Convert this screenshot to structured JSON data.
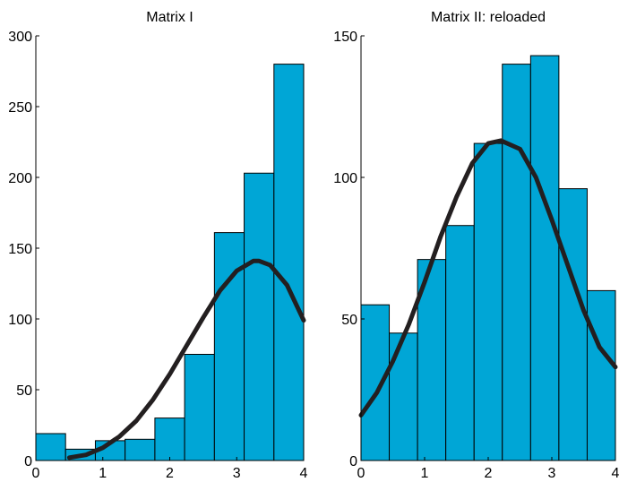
{
  "chart_data": [
    {
      "type": "bar",
      "title": "Matrix I",
      "xlabel": "",
      "ylabel": "",
      "xlim": [
        0,
        4
      ],
      "ylim": [
        0,
        300
      ],
      "xticks": [
        "0",
        "1",
        "2",
        "3",
        "4"
      ],
      "yticks": [
        "0",
        "50",
        "100",
        "150",
        "200",
        "250",
        "300"
      ],
      "bin_edges": [
        0,
        0.444,
        0.889,
        1.333,
        1.778,
        2.222,
        2.667,
        3.111,
        3.556,
        4.0
      ],
      "values": [
        19,
        8,
        14,
        15,
        30,
        75,
        161,
        203,
        280
      ],
      "bar_color": "#00a6d6",
      "fit_curve": {
        "x": [
          0.5,
          0.75,
          1.0,
          1.25,
          1.5,
          1.75,
          2.0,
          2.25,
          2.5,
          2.75,
          3.0,
          3.25,
          3.33,
          3.5,
          3.75,
          4.0
        ],
        "y": [
          2,
          4,
          9,
          17,
          28,
          43,
          61,
          81,
          101,
          120,
          134,
          141,
          141,
          138,
          124,
          99
        ]
      },
      "grid": false
    },
    {
      "type": "bar",
      "title": "Matrix II: reloaded",
      "xlabel": "",
      "ylabel": "",
      "xlim": [
        0,
        4
      ],
      "ylim": [
        0,
        150
      ],
      "xticks": [
        "0",
        "1",
        "2",
        "3",
        "4"
      ],
      "yticks": [
        "0",
        "50",
        "100",
        "150"
      ],
      "bin_edges": [
        0,
        0.444,
        0.889,
        1.333,
        1.778,
        2.222,
        2.667,
        3.111,
        3.556,
        4.0
      ],
      "values": [
        55,
        45,
        71,
        83,
        112,
        140,
        143,
        96,
        60
      ],
      "bar_color": "#00a6d6",
      "fit_curve": {
        "x": [
          0.0,
          0.25,
          0.5,
          0.75,
          1.0,
          1.25,
          1.5,
          1.75,
          2.0,
          2.2,
          2.5,
          2.75,
          3.0,
          3.25,
          3.5,
          3.75,
          4.0
        ],
        "y": [
          16,
          24,
          35,
          48,
          63,
          79,
          93,
          105,
          112,
          113,
          110,
          100,
          85,
          69,
          53,
          40,
          33
        ]
      },
      "grid": false
    }
  ]
}
